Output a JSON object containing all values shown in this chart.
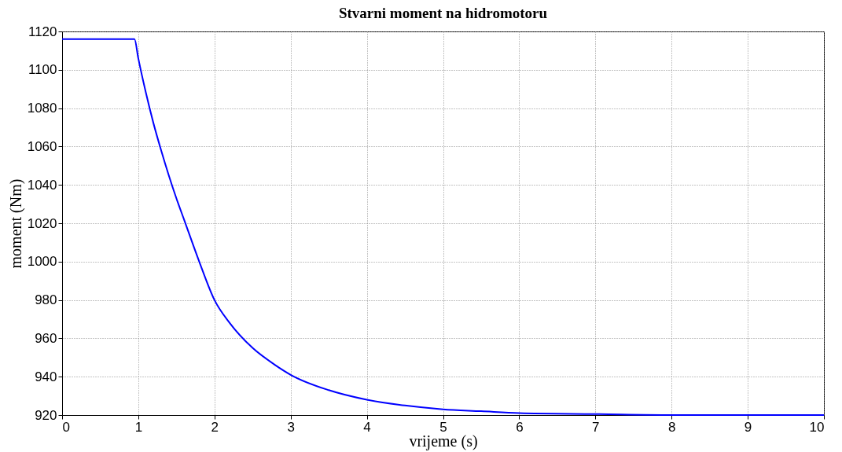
{
  "chart_data": {
    "type": "line",
    "title": "Stvarni moment na hidromotoru",
    "xlabel": "vrijeme (s)",
    "ylabel": "moment (Nm)",
    "x": [
      0,
      0.95,
      1.0,
      1.1,
      1.2,
      1.3,
      1.4,
      1.5,
      1.6,
      1.8,
      2.0,
      2.2,
      2.5,
      2.8,
      3.0,
      3.5,
      4.0,
      4.5,
      5.0,
      5.5,
      6.0,
      7.0,
      8.0,
      9.0,
      10
    ],
    "series": [
      {
        "color": "#0000ff",
        "values": [
          1116,
          1116,
          1106,
          1088,
          1072,
          1058,
          1045,
          1033,
          1022,
          1000,
          980,
          968,
          955,
          946,
          941,
          933,
          928,
          925,
          923,
          922,
          921,
          920.5,
          920,
          920,
          920
        ]
      }
    ],
    "xlim": [
      0,
      10
    ],
    "xticks": [
      0,
      1,
      2,
      3,
      4,
      5,
      6,
      7,
      8,
      9,
      10
    ],
    "ylim": [
      920,
      1120
    ],
    "yticks": [
      920,
      940,
      960,
      980,
      1000,
      1020,
      1040,
      1060,
      1080,
      1100,
      1120
    ],
    "grid": true,
    "line_style": "solid",
    "marker": "none"
  }
}
